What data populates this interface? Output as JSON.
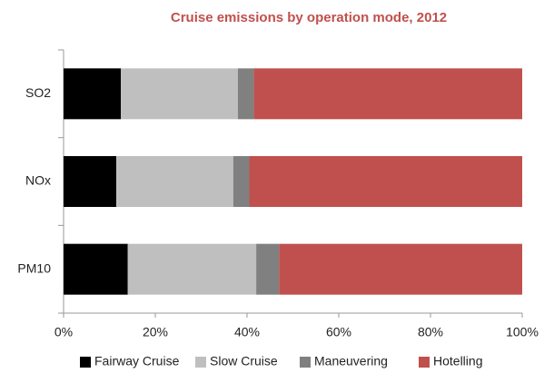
{
  "chart_data": {
    "type": "stacked_barh",
    "title": "Cruise emissions by operation mode, 2012",
    "categories": [
      "SO2",
      "NOx",
      "PM10"
    ],
    "series": [
      {
        "name": "Fairway Cruise",
        "color": "#000000",
        "values": [
          12.5,
          11.5,
          14
        ]
      },
      {
        "name": "Slow Cruise",
        "color": "#bfbfbf",
        "values": [
          25.5,
          25.5,
          28
        ]
      },
      {
        "name": "Maneuvering",
        "color": "#808080",
        "values": [
          3.5,
          3.5,
          5
        ]
      },
      {
        "name": "Hotelling",
        "color": "#c0504d",
        "values": [
          58.5,
          59.5,
          53
        ]
      }
    ],
    "xlim": [
      0,
      100
    ],
    "xticks": [
      {
        "value": 0,
        "label": "0%"
      },
      {
        "value": 20,
        "label": "20%"
      },
      {
        "value": 40,
        "label": "40%"
      },
      {
        "value": 60,
        "label": "60%"
      },
      {
        "value": 80,
        "label": "80%"
      },
      {
        "value": 100,
        "label": "100%"
      }
    ],
    "grid": false
  }
}
